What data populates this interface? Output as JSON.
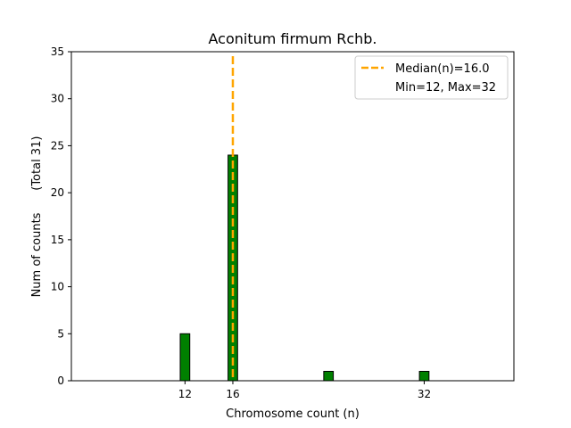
{
  "chart_data": {
    "type": "bar",
    "title": "Aconitum firmum Rchb.",
    "xlabel": "Chromosome count (n)",
    "ylabel": "Num of counts      (Total 31)",
    "xlim": [
      2.5,
      39.5
    ],
    "ylim": [
      0,
      35
    ],
    "x_ticks": [
      12,
      16,
      32
    ],
    "y_ticks": [
      0,
      5,
      10,
      15,
      20,
      25,
      30,
      35
    ],
    "bar_width": 0.8,
    "bars": [
      {
        "x": 12,
        "value": 5
      },
      {
        "x": 16,
        "value": 24
      },
      {
        "x": 24,
        "value": 1
      },
      {
        "x": 32,
        "value": 1
      }
    ],
    "baseline_range": [
      9.6,
      35.6
    ],
    "median_line": {
      "x": 16.0
    },
    "legend": {
      "position": "top-right",
      "entries": [
        "Median(n)=16.0",
        "Min=12, Max=32"
      ]
    },
    "colors": {
      "bar_fill": "#008000",
      "bar_edge": "#000000",
      "median": "#FFA500"
    },
    "grid": false
  }
}
